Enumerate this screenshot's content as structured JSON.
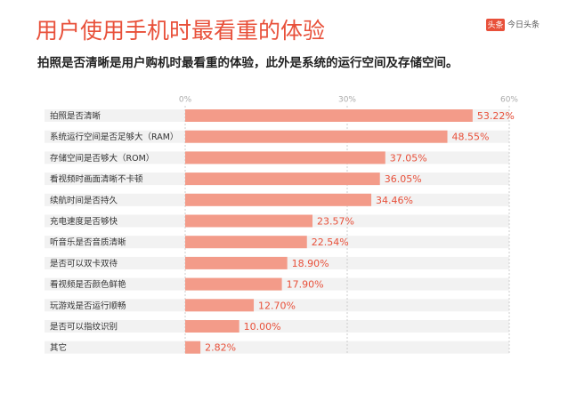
{
  "chart_data": {
    "type": "hbar",
    "title": "用户使用手机时最看重的体验",
    "subtitle": "拍照是否清晰是用户购机时最看重的体验，此外是系统的运行空间及存储空间。",
    "categories": [
      "拍照是否清晰",
      "系统运行空间是否足够大（RAM）",
      "存储空间是否够大（ROM）",
      "看视频时画面清晰不卡顿",
      "续航时间是否持久",
      "充电速度是否够快",
      "听音乐是否音质清晰",
      "是否可以双卡双待",
      "看视频是否颜色鲜艳",
      "玩游戏是否运行顺畅",
      "是否可以指纹识别",
      "其它"
    ],
    "values": [
      53.22,
      48.55,
      37.05,
      36.05,
      34.46,
      23.57,
      22.54,
      18.9,
      17.9,
      12.7,
      10.0,
      2.82
    ],
    "value_labels": [
      "53.22%",
      "48.55%",
      "37.05%",
      "36.05%",
      "34.46%",
      "23.57%",
      "22.54%",
      "18.90%",
      "17.90%",
      "12.70%",
      "10.00%",
      "2.82%"
    ],
    "color": "#f39b89",
    "xlim": [
      0,
      60
    ],
    "xticks": [
      {
        "value": 0,
        "label": "0%"
      },
      {
        "value": 30,
        "label": "30%"
      },
      {
        "value": 60,
        "label": "60%"
      }
    ],
    "grid": true
  },
  "logo": {
    "badge": "头条",
    "name": "今日头条"
  }
}
